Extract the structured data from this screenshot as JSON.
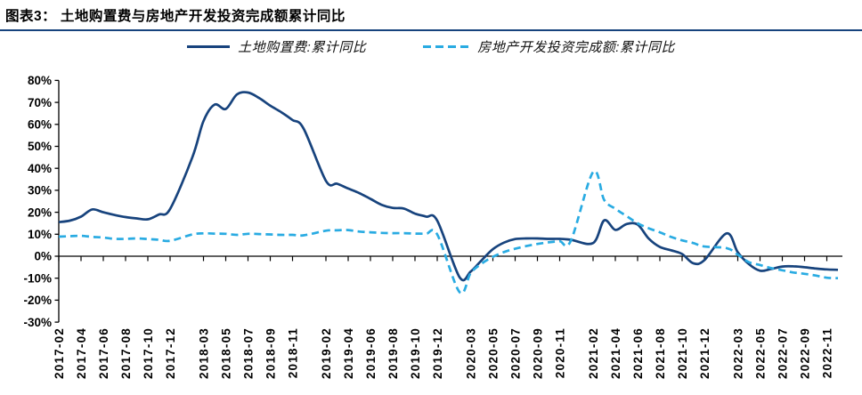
{
  "header": {
    "title": "图表3：  土地购置费与房地产开发投资完成额累计同比"
  },
  "legend": [
    {
      "label": "土地购置费:累计同比",
      "color": "#17437d",
      "style": "solid"
    },
    {
      "label": "房地产开发投资完成额:累计同比",
      "color": "#29abe2",
      "style": "dashed"
    }
  ],
  "colors": {
    "accent_navy": "#17437d",
    "accent_cyan": "#29abe2",
    "axis": "#000000"
  },
  "chart_data": {
    "type": "line",
    "title": "土地购置费与房地产开发投资完成额累计同比",
    "y_unit": "%",
    "ylim": [
      -30,
      80
    ],
    "y_ticks": [
      80,
      70,
      60,
      50,
      40,
      30,
      20,
      10,
      0,
      -10,
      -20,
      -30
    ],
    "x_label_interval": 2,
    "grid": false,
    "legend_position": "top",
    "x": [
      "2017-02",
      "2017-03",
      "2017-04",
      "2017-05",
      "2017-06",
      "2017-07",
      "2017-08",
      "2017-09",
      "2017-10",
      "2017-11",
      "2017-12",
      "2018-02",
      "2018-03",
      "2018-04",
      "2018-05",
      "2018-06",
      "2018-07",
      "2018-08",
      "2018-09",
      "2018-10",
      "2018-11",
      "2018-12",
      "2019-02",
      "2019-03",
      "2019-04",
      "2019-05",
      "2019-06",
      "2019-07",
      "2019-08",
      "2019-09",
      "2019-10",
      "2019-11",
      "2019-12",
      "2020-02",
      "2020-03",
      "2020-04",
      "2020-05",
      "2020-06",
      "2020-07",
      "2020-08",
      "2020-09",
      "2020-10",
      "2020-11",
      "2020-12",
      "2021-02",
      "2021-03",
      "2021-04",
      "2021-05",
      "2021-06",
      "2021-07",
      "2021-08",
      "2021-09",
      "2021-10",
      "2021-11",
      "2021-12",
      "2022-02",
      "2022-03",
      "2022-04",
      "2022-05",
      "2022-06",
      "2022-07",
      "2022-08",
      "2022-09",
      "2022-10",
      "2022-11",
      "2022-12"
    ],
    "series": [
      {
        "name": "土地购置费:累计同比",
        "color": "#17437d",
        "dash": null,
        "values": [
          15.5,
          16.2,
          18.0,
          21.3,
          20.0,
          18.8,
          17.8,
          17.2,
          16.8,
          19.0,
          21.5,
          45.0,
          61.5,
          69.0,
          67.0,
          73.6,
          74.5,
          72.0,
          68.5,
          65.5,
          62.0,
          58.0,
          34.3,
          33.0,
          30.8,
          28.7,
          26.1,
          23.4,
          22.0,
          21.7,
          19.4,
          18.0,
          16.2,
          -9.5,
          -7.0,
          -1.8,
          3.2,
          6.2,
          7.8,
          8.1,
          8.1,
          7.9,
          7.9,
          7.5,
          6.0,
          16.3,
          12.0,
          14.6,
          14.4,
          8.0,
          4.2,
          2.7,
          1.0,
          -3.2,
          -1.8,
          10.4,
          1.8,
          -3.6,
          -6.6,
          -5.8,
          -4.7,
          -4.6,
          -5.0,
          -5.6,
          -6.0,
          -6.2
        ]
      },
      {
        "name": "房地产开发投资完成额:累计同比",
        "color": "#29abe2",
        "dash": "8 5",
        "values": [
          8.9,
          9.1,
          9.3,
          8.8,
          8.5,
          7.9,
          7.9,
          8.1,
          7.8,
          7.5,
          7.0,
          9.9,
          10.4,
          10.3,
          10.2,
          9.7,
          10.2,
          10.1,
          9.9,
          9.7,
          9.7,
          9.5,
          11.6,
          11.8,
          11.9,
          11.2,
          10.9,
          10.6,
          10.5,
          10.5,
          10.3,
          10.2,
          9.9,
          -16.3,
          -7.7,
          -3.3,
          -0.3,
          1.9,
          3.4,
          4.6,
          5.6,
          6.3,
          6.8,
          7.0,
          38.3,
          25.6,
          21.6,
          18.3,
          15.0,
          12.7,
          10.9,
          8.8,
          7.2,
          6.0,
          4.4,
          3.7,
          0.7,
          -2.7,
          -4.0,
          -5.4,
          -6.4,
          -7.4,
          -8.0,
          -8.8,
          -9.8,
          -10.0
        ]
      }
    ]
  }
}
